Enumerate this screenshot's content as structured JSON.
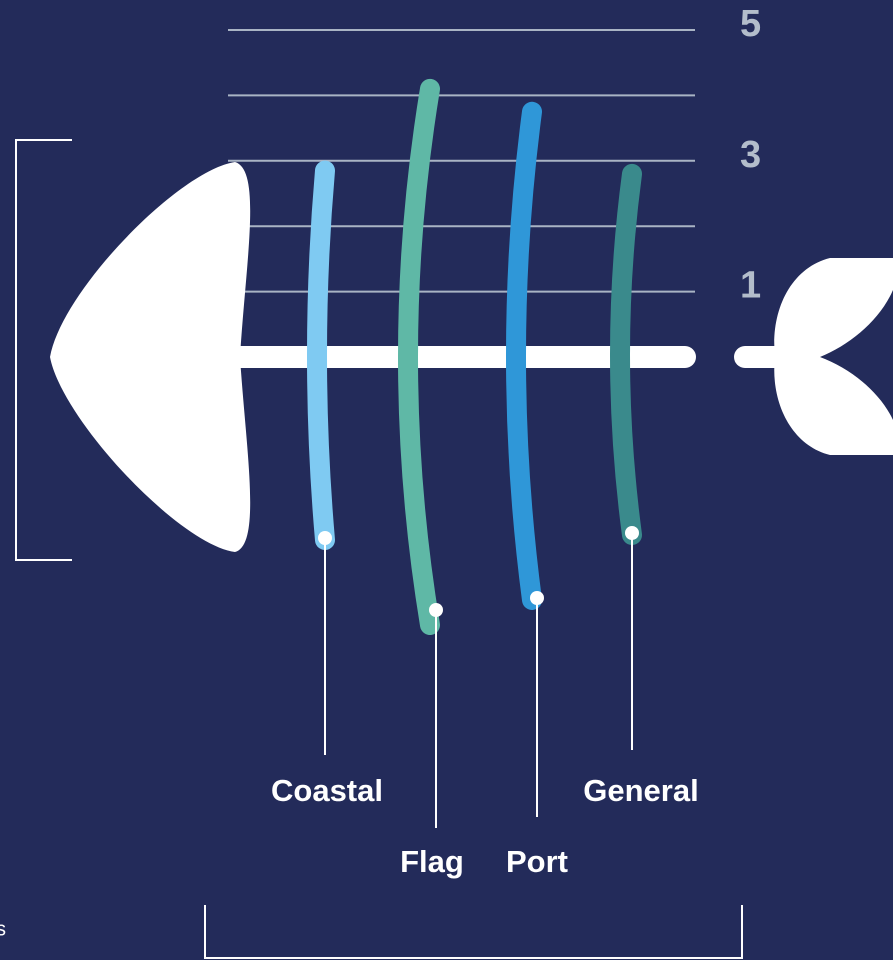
{
  "chart_data": {
    "type": "fishbone",
    "categories": [
      "Coastal",
      "Flag",
      "Port",
      "General"
    ],
    "series": [
      {
        "name": null,
        "colors": [
          "#7fcaf2",
          "#5fb8a6",
          "#2f97d8",
          "#3a8a8c"
        ],
        "values": [
          2.85,
          4.1,
          3.75,
          2.8
        ]
      }
    ],
    "ylim": [
      0,
      5
    ],
    "yticks": [
      1,
      3,
      5
    ],
    "minor_yticks": [
      2,
      4
    ],
    "grid": true,
    "annotation": "s"
  }
}
